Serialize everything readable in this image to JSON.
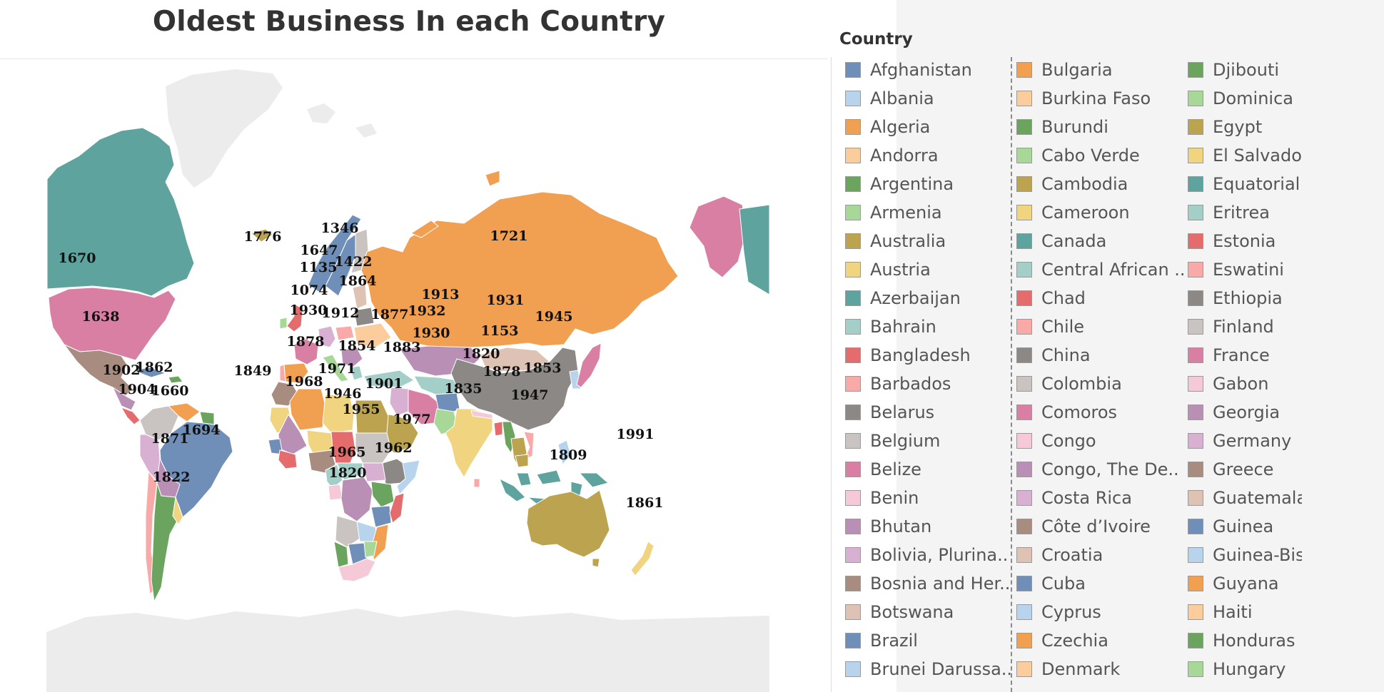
{
  "title": "Oldest Business In each Country",
  "legend": {
    "title": "Country",
    "items": [
      {
        "name": "Afghanistan",
        "color": "#6f8fb8"
      },
      {
        "name": "Albania",
        "color": "#b8d4ec"
      },
      {
        "name": "Algeria",
        "color": "#f0a050"
      },
      {
        "name": "Andorra",
        "color": "#fbcd9c"
      },
      {
        "name": "Argentina",
        "color": "#6aa45f"
      },
      {
        "name": "Armenia",
        "color": "#a7d898"
      },
      {
        "name": "Australia",
        "color": "#bba350"
      },
      {
        "name": "Austria",
        "color": "#f1d47f"
      },
      {
        "name": "Azerbaijan",
        "color": "#5ea39e"
      },
      {
        "name": "Bahrain",
        "color": "#a4cfc9"
      },
      {
        "name": "Bangladesh",
        "color": "#e46c6c"
      },
      {
        "name": "Barbados",
        "color": "#f9aaa8"
      },
      {
        "name": "Belarus",
        "color": "#8c8886"
      },
      {
        "name": "Belgium",
        "color": "#c9c3c1"
      },
      {
        "name": "Belize",
        "color": "#d97fa4"
      },
      {
        "name": "Benin",
        "color": "#f6c9d8"
      },
      {
        "name": "Bhutan",
        "color": "#b98fb5"
      },
      {
        "name": "Bolivia, Plurina..",
        "color": "#d8b1d2"
      },
      {
        "name": "Bosnia and Her..",
        "color": "#a88c7f"
      },
      {
        "name": "Botswana",
        "color": "#dec2b4"
      },
      {
        "name": "Brazil",
        "color": "#6f8fb8"
      },
      {
        "name": "Brunei Darussa..",
        "color": "#b8d4ec"
      },
      {
        "name": "Bulgaria",
        "color": "#f0a050"
      },
      {
        "name": "Burkina Faso",
        "color": "#fbcd9c"
      },
      {
        "name": "Burundi",
        "color": "#6aa45f"
      },
      {
        "name": "Cabo Verde",
        "color": "#a7d898"
      },
      {
        "name": "Cambodia",
        "color": "#bba350"
      },
      {
        "name": "Cameroon",
        "color": "#f1d47f"
      },
      {
        "name": "Canada",
        "color": "#5ea39e"
      },
      {
        "name": "Central African ..",
        "color": "#a4cfc9"
      },
      {
        "name": "Chad",
        "color": "#e46c6c"
      },
      {
        "name": "Chile",
        "color": "#f9aaa8"
      },
      {
        "name": "China",
        "color": "#8c8886"
      },
      {
        "name": "Colombia",
        "color": "#c9c3c1"
      },
      {
        "name": "Comoros",
        "color": "#d97fa4"
      },
      {
        "name": "Congo",
        "color": "#f6c9d8"
      },
      {
        "name": "Congo, The De..",
        "color": "#b98fb5"
      },
      {
        "name": "Costa Rica",
        "color": "#d8b1d2"
      },
      {
        "name": "Côte d’Ivoire",
        "color": "#a88c7f"
      },
      {
        "name": "Croatia",
        "color": "#dec2b4"
      },
      {
        "name": "Cuba",
        "color": "#6f8fb8"
      },
      {
        "name": "Cyprus",
        "color": "#b8d4ec"
      },
      {
        "name": "Czechia",
        "color": "#f0a050"
      },
      {
        "name": "Denmark",
        "color": "#fbcd9c"
      },
      {
        "name": "Djibouti",
        "color": "#6aa45f"
      },
      {
        "name": "Dominica",
        "color": "#a7d898"
      },
      {
        "name": "Egypt",
        "color": "#bba350"
      },
      {
        "name": "El Salvador",
        "color": "#f1d47f"
      },
      {
        "name": "Equatorial",
        "color": "#5ea39e"
      },
      {
        "name": "Eritrea",
        "color": "#a4cfc9"
      },
      {
        "name": "Estonia",
        "color": "#e46c6c"
      },
      {
        "name": "Eswatini",
        "color": "#f9aaa8"
      },
      {
        "name": "Ethiopia",
        "color": "#8c8886"
      },
      {
        "name": "Finland",
        "color": "#c9c3c1"
      },
      {
        "name": "France",
        "color": "#d97fa4"
      },
      {
        "name": "Gabon",
        "color": "#f6c9d8"
      },
      {
        "name": "Georgia",
        "color": "#b98fb5"
      },
      {
        "name": "Germany",
        "color": "#d8b1d2"
      },
      {
        "name": "Greece",
        "color": "#a88c7f"
      },
      {
        "name": "Guatemala",
        "color": "#dec2b4"
      },
      {
        "name": "Guinea",
        "color": "#6f8fb8"
      },
      {
        "name": "Guinea-Bis",
        "color": "#b8d4ec"
      },
      {
        "name": "Guyana",
        "color": "#f0a050"
      },
      {
        "name": "Haiti",
        "color": "#fbcd9c"
      },
      {
        "name": "Honduras",
        "color": "#6aa45f"
      },
      {
        "name": "Hungary",
        "color": "#a7d898"
      }
    ]
  },
  "map": {
    "land_color": "#ececec",
    "year_labels": [
      "1776",
      "1346",
      "1647",
      "1422",
      "1135",
      "1864",
      "1074",
      "1721",
      "1670",
      "1638",
      "1913",
      "1931",
      "1930",
      "1912",
      "1877",
      "1932",
      "1945",
      "1930",
      "1153",
      "1878",
      "1854",
      "1883",
      "1849",
      "1968",
      "1971",
      "1901",
      "1946",
      "1820",
      "1878",
      "1853",
      "1835",
      "1947",
      "1862",
      "1902",
      "1904",
      "1660",
      "1955",
      "1977",
      "1694",
      "1871",
      "1965",
      "1962",
      "1991",
      "1809",
      "1820",
      "1822",
      "1861"
    ]
  }
}
